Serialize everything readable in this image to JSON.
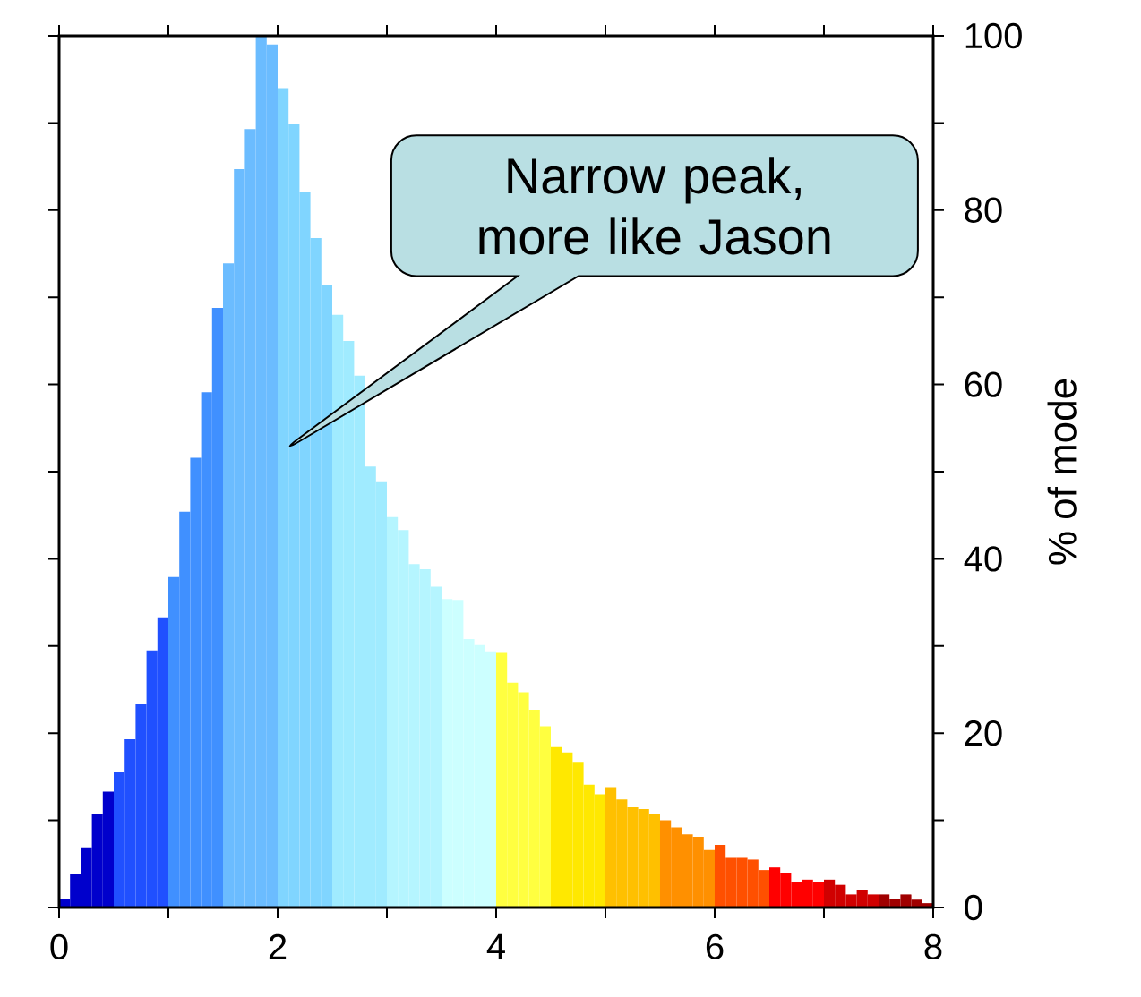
{
  "chart_data": {
    "type": "histogram",
    "bins": [
      0,
      0.1,
      0.2,
      0.3,
      0.4,
      0.5,
      0.6,
      0.7,
      0.8,
      0.9,
      1,
      1.1,
      1.2,
      1.3,
      1.4,
      1.5,
      1.6,
      1.7,
      1.8,
      1.9,
      2,
      2.1,
      2.2,
      2.3,
      2.4,
      2.5,
      2.6,
      2.7,
      2.8,
      2.9,
      3,
      3.1,
      3.2,
      3.3,
      3.4,
      3.5,
      3.6,
      3.7,
      3.8,
      3.9,
      4,
      4.1,
      4.2,
      4.3,
      4.4,
      4.5,
      4.6,
      4.7,
      4.8,
      4.9,
      5,
      5.1,
      5.2,
      5.3,
      5.4,
      5.5,
      5.6,
      5.7,
      5.8,
      5.9,
      6,
      6.1,
      6.2,
      6.3,
      6.4,
      6.5,
      6.6,
      6.7,
      6.8,
      6.9,
      7,
      7.1,
      7.2,
      7.3,
      7.4,
      7.5,
      7.6,
      7.7,
      7.8,
      7.9,
      8
    ],
    "values": [
      1,
      3.8,
      6.9,
      10.7,
      13.3,
      15.5,
      19.3,
      23.3,
      29.5,
      33.3,
      37.9,
      45.4,
      51.6,
      59.1,
      68.8,
      73.9,
      84.7,
      89.3,
      100,
      99,
      94,
      89.9,
      82.1,
      76.8,
      71.4,
      68,
      65,
      61,
      50.6,
      48.8,
      44.8,
      43.3,
      39.4,
      38.8,
      36.8,
      35.4,
      35.3,
      30.8,
      30.1,
      29.4,
      29.2,
      25.8,
      24.7,
      22.7,
      20.8,
      18.4,
      17.8,
      16.7,
      14.1,
      13,
      13.8,
      12.4,
      11.5,
      11.3,
      10.7,
      10,
      9.2,
      8.4,
      8.1,
      6.6,
      7.2,
      5.7,
      5.7,
      5.5,
      4.3,
      4.6,
      4,
      2.9,
      3.2,
      2.9,
      3.2,
      2.6,
      1.5,
      2,
      1.5,
      1.5,
      1,
      1.5,
      0.9,
      0.5
    ],
    "colors": [
      "#0000cc",
      "#0000cc",
      "#0000cc",
      "#0000cc",
      "#0000cc",
      "#2050ff",
      "#2050ff",
      "#2050ff",
      "#2050ff",
      "#2050ff",
      "#4090ff",
      "#4090ff",
      "#4090ff",
      "#4090ff",
      "#4090ff",
      "#6bbcff",
      "#6bbcff",
      "#6bbcff",
      "#6bbcff",
      "#6bbcff",
      "#80d5ff",
      "#80d5ff",
      "#80d5ff",
      "#80d5ff",
      "#80d5ff",
      "#a0ebff",
      "#a0ebff",
      "#a0ebff",
      "#a0ebff",
      "#a0ebff",
      "#b5f5ff",
      "#b5f5ff",
      "#b5f5ff",
      "#b5f5ff",
      "#b5f5ff",
      "#ccffff",
      "#ccffff",
      "#ccffff",
      "#ccffff",
      "#ccffff",
      "#ffff40",
      "#ffff40",
      "#ffff40",
      "#ffff40",
      "#ffff40",
      "#ffe800",
      "#ffe800",
      "#ffe800",
      "#ffe800",
      "#ffe800",
      "#ffc000",
      "#ffc000",
      "#ffc000",
      "#ffc000",
      "#ffc000",
      "#ff9000",
      "#ff9000",
      "#ff9000",
      "#ff9000",
      "#ff9000",
      "#ff5000",
      "#ff5000",
      "#ff5000",
      "#ff5000",
      "#ff5000",
      "#ff0000",
      "#ff0000",
      "#ff0000",
      "#ff0000",
      "#ff0000",
      "#d00000",
      "#d00000",
      "#d00000",
      "#d00000",
      "#d00000",
      "#a00000",
      "#a00000",
      "#a00000",
      "#a00000",
      "#a00000"
    ],
    "xlim": [
      0,
      8
    ],
    "ylim": [
      0,
      100
    ],
    "xticks": [
      0,
      {
        "value": 1,
        "label": null
      },
      2,
      {
        "value": 3,
        "label": null
      },
      4,
      {
        "value": 5,
        "label": null
      },
      6,
      {
        "value": 7,
        "label": null
      },
      8
    ],
    "yticks": [
      0,
      {
        "value": 10,
        "label": null
      },
      20,
      {
        "value": 30,
        "label": null
      },
      40,
      {
        "value": 50,
        "label": null
      },
      60,
      {
        "value": 70,
        "label": null
      },
      80,
      {
        "value": 90,
        "label": null
      },
      100
    ],
    "ylabel": "% of mode",
    "annotations": [
      "Narrow peak, more like Jason"
    ]
  }
}
